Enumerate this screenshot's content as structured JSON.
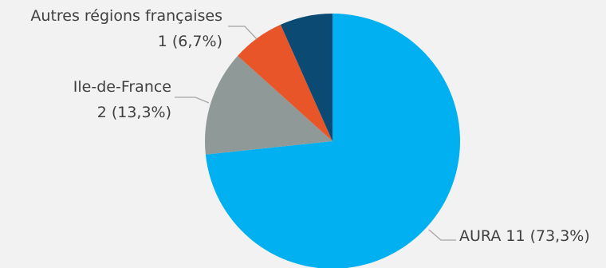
{
  "chart_data": {
    "type": "pie",
    "title": "",
    "slices": [
      {
        "name": "AURA",
        "value": 11,
        "percent_label": "73,3%",
        "color": "#00b0f0",
        "label_lines": [
          "AURA 11 (73,3%)"
        ]
      },
      {
        "name": "Ile-de-France",
        "value": 2,
        "percent_label": "13,3%",
        "color": "#8f9a98",
        "label_lines": [
          "Ile-de-France",
          "2 (13,3%)"
        ]
      },
      {
        "name": "Autres régions françaises",
        "value": 1,
        "percent_label": "6,7%",
        "color": "#e85529",
        "label_lines": [
          "Autres régions françaises",
          "1 (6,7%)"
        ]
      },
      {
        "name": "",
        "value": 1,
        "percent_label": "",
        "color": "#0b4a72",
        "label_lines": []
      }
    ],
    "start_angle": "12 o'clock",
    "direction": "clockwise",
    "legend": "none"
  }
}
